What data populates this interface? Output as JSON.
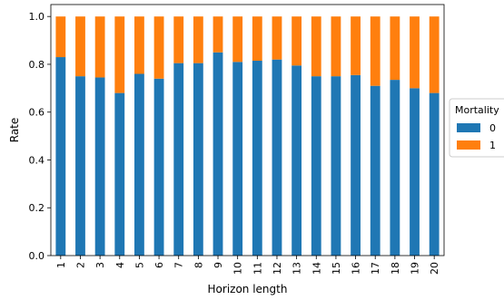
{
  "chart_data": {
    "type": "bar",
    "stacked": true,
    "xlabel": "Horizon length",
    "ylabel": "Rate",
    "ylim": [
      0,
      1.0
    ],
    "yticks": [
      0.0,
      0.2,
      0.4,
      0.6,
      0.8,
      1.0
    ],
    "ytick_labels": [
      "0.0",
      "0.2",
      "0.4",
      "0.6",
      "0.8",
      "1.0"
    ],
    "grid": false,
    "legend": {
      "title": "Mortality",
      "placement": "center-right outside"
    },
    "categories": [
      "1",
      "2",
      "3",
      "4",
      "5",
      "6",
      "7",
      "8",
      "9",
      "10",
      "11",
      "12",
      "13",
      "14",
      "15",
      "16",
      "17",
      "18",
      "19",
      "20"
    ],
    "series": [
      {
        "name": "0",
        "color": "#1f77b4",
        "values": [
          0.83,
          0.75,
          0.745,
          0.68,
          0.76,
          0.74,
          0.805,
          0.805,
          0.85,
          0.81,
          0.815,
          0.82,
          0.795,
          0.75,
          0.75,
          0.755,
          0.71,
          0.735,
          0.7,
          0.68
        ]
      },
      {
        "name": "1",
        "color": "#ff7f0e",
        "values": [
          0.17,
          0.25,
          0.255,
          0.32,
          0.24,
          0.26,
          0.195,
          0.195,
          0.15,
          0.19,
          0.185,
          0.18,
          0.205,
          0.25,
          0.25,
          0.245,
          0.29,
          0.265,
          0.3,
          0.32
        ]
      }
    ]
  }
}
